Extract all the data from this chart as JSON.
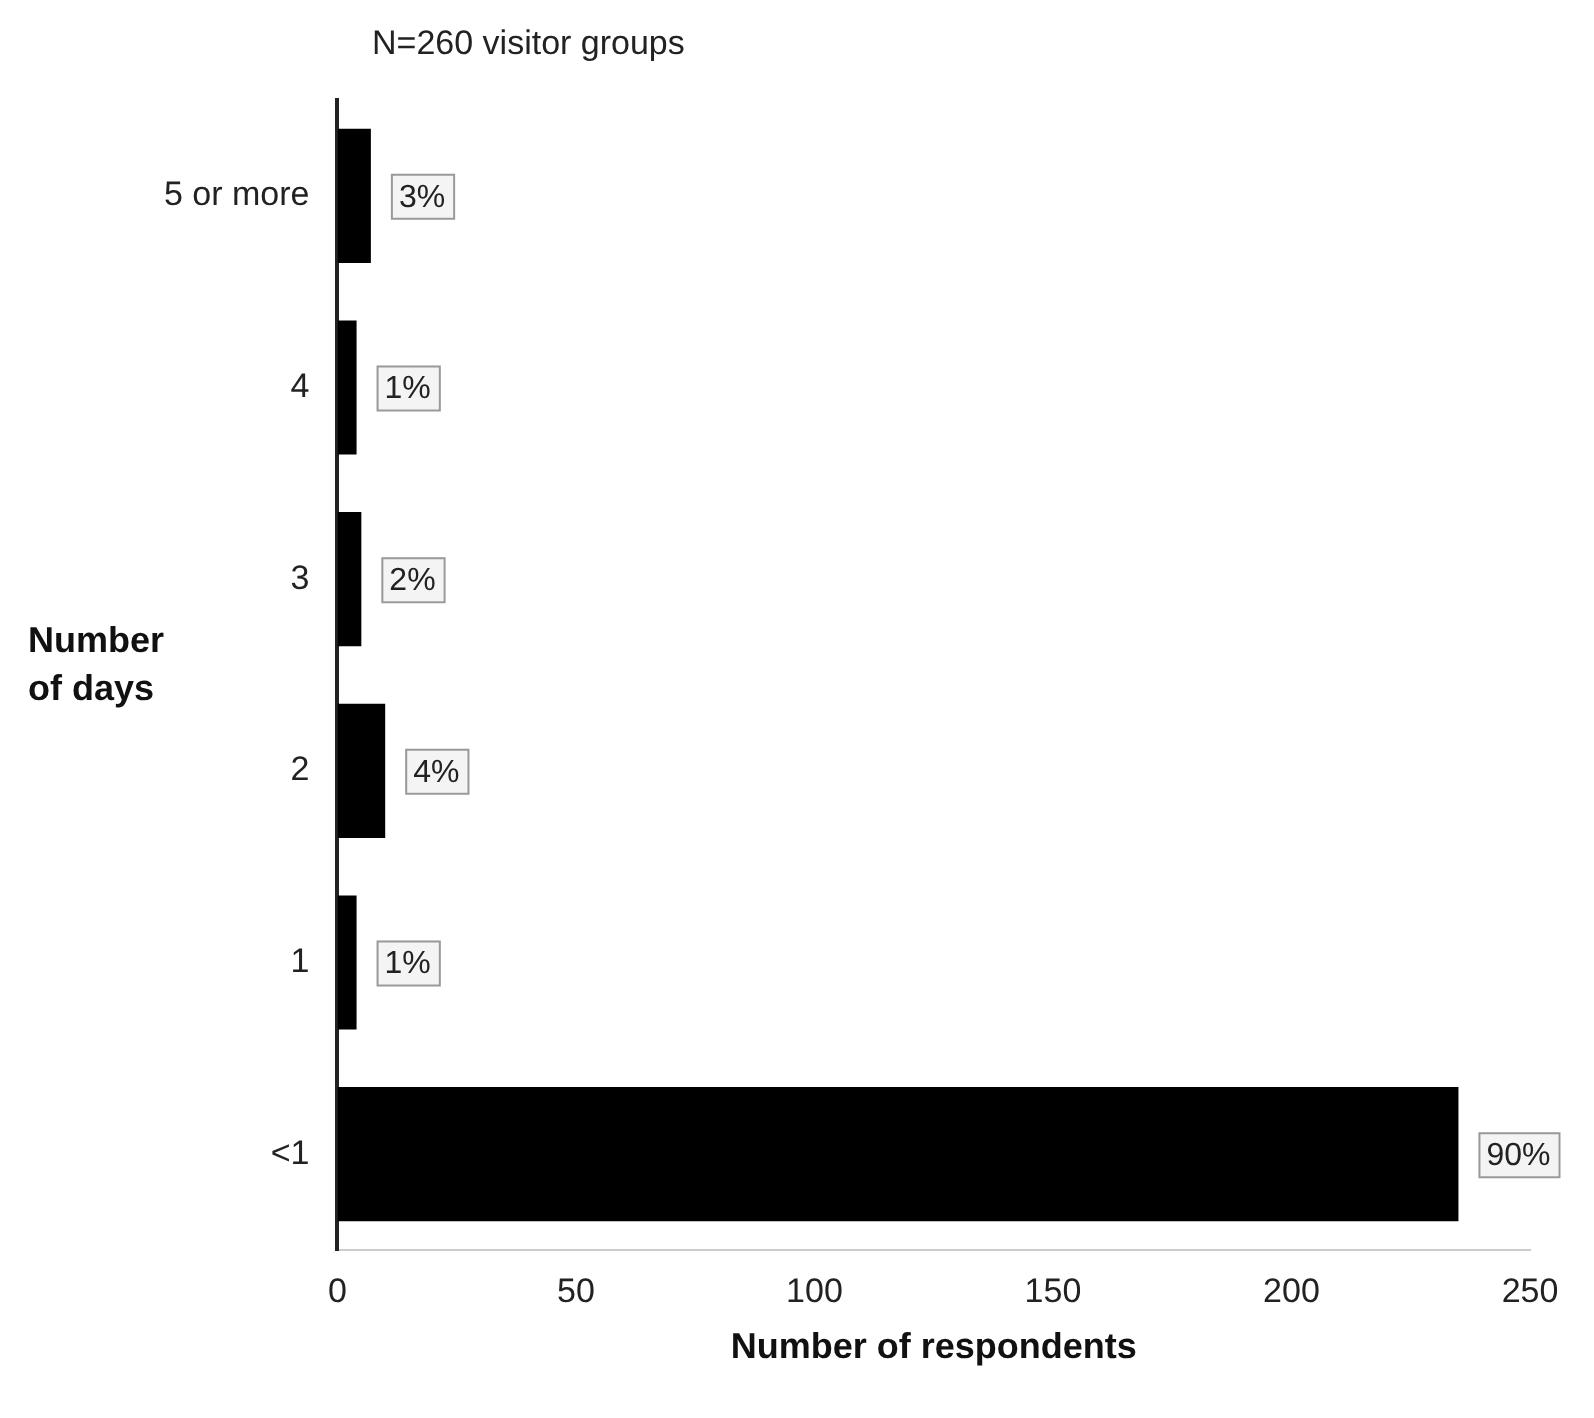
{
  "chart_data": {
    "type": "bar",
    "orientation": "horizontal",
    "title": "N=260 visitor groups",
    "ylabel": "Number of days",
    "xlabel": "Number of respondents",
    "categories": [
      "5 or more",
      "4",
      "3",
      "2",
      "1",
      "<1"
    ],
    "values": [
      7,
      4,
      5,
      10,
      4,
      235
    ],
    "color": "#000000",
    "annotations": [
      {
        "text": "3%",
        "x": 7,
        "y": "5 or more"
      },
      {
        "text": "1%",
        "x": 4,
        "y": "4"
      },
      {
        "text": "2%",
        "x": 5,
        "y": "3"
      },
      {
        "text": "4%",
        "x": 10,
        "y": "2"
      },
      {
        "text": "1%",
        "x": 4,
        "y": "1"
      },
      {
        "text": "90%",
        "x": 235,
        "y": "<1"
      }
    ],
    "xlim": [
      0,
      250
    ],
    "xticks": [
      0,
      50,
      100,
      150,
      200,
      250
    ],
    "grid": false,
    "legend": false
  }
}
